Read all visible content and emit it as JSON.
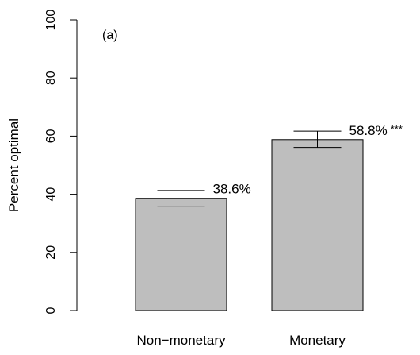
{
  "chart_data": {
    "type": "bar",
    "panel_label": "(a)",
    "categories": [
      "Non−monetary",
      "Monetary"
    ],
    "values": [
      38.6,
      58.8
    ],
    "error_low": [
      35.9,
      56.1
    ],
    "error_high": [
      41.3,
      61.7
    ],
    "data_labels": [
      "38.6%",
      "58.8%"
    ],
    "significance": [
      "",
      "***"
    ],
    "ylabel": "Percent optimal",
    "xlabel": "",
    "ylim": [
      0,
      100
    ],
    "yticks": [
      0,
      20,
      40,
      60,
      80,
      100
    ],
    "bar_color": "#bebebe",
    "grid": false
  }
}
